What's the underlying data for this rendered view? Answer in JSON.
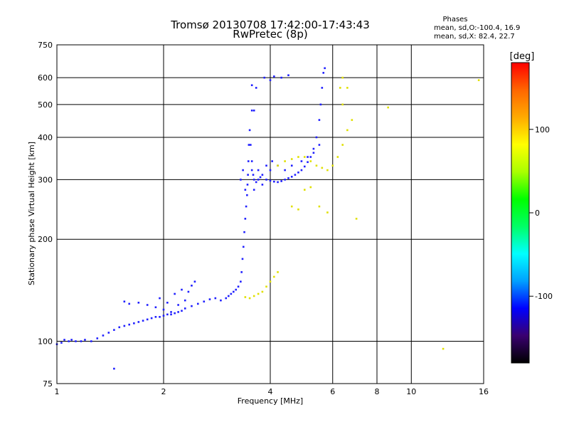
{
  "chart_data": {
    "type": "scatter",
    "title": "Tromsø 20130708 17:42:00-17:43:43",
    "subtitle": "RwPretec (8p)",
    "xlabel": "Frequency [MHz]",
    "ylabel": "Stationary phase Virtual Height [km]",
    "xscale": "log",
    "yscale": "log",
    "xlim": [
      1,
      16
    ],
    "ylim": [
      75,
      750
    ],
    "x_ticks": [
      1,
      2,
      4,
      6,
      8,
      10,
      16
    ],
    "x_tick_labels": [
      "1",
      "2",
      "4",
      "6",
      "8",
      "10",
      "16"
    ],
    "x_grid": [
      2,
      4,
      6,
      8,
      10
    ],
    "y_ticks": [
      75,
      100,
      200,
      300,
      400,
      500,
      600,
      750
    ],
    "y_tick_labels": [
      "75",
      "100",
      "200",
      "300",
      "400",
      "500",
      "600",
      "750"
    ],
    "y_grid": [
      100,
      200,
      300,
      400,
      500,
      600
    ],
    "grid": true,
    "legend": {
      "title": "Phases",
      "lines": [
        "mean, sd,O:-100.4, 16.9",
        "mean, sd,X:  82.4, 22.7"
      ],
      "placement": "top-right"
    },
    "colorbar": {
      "label": "[deg]",
      "range": [
        -180,
        180
      ],
      "ticks": [
        100,
        0,
        -100
      ],
      "tick_labels": [
        "100",
        "0",
        "-100"
      ],
      "colors": [
        "#000000",
        "#3a0070",
        "#0000ff",
        "#00a0ff",
        "#00ffff",
        "#00ff66",
        "#00ff00",
        "#aaff00",
        "#ffff00",
        "#ffaa00",
        "#ff6600",
        "#ff0000"
      ]
    },
    "series": [
      {
        "mode": "O",
        "color": "#2020ff",
        "points": [
          [
            1.0,
            98
          ],
          [
            1.03,
            99
          ],
          [
            1.05,
            101
          ],
          [
            1.08,
            100
          ],
          [
            1.1,
            101
          ],
          [
            1.13,
            100
          ],
          [
            1.17,
            100
          ],
          [
            1.2,
            101
          ],
          [
            1.25,
            100
          ],
          [
            1.3,
            102
          ],
          [
            1.35,
            104
          ],
          [
            1.4,
            106
          ],
          [
            1.45,
            108
          ],
          [
            1.5,
            110
          ],
          [
            1.55,
            111
          ],
          [
            1.6,
            112
          ],
          [
            1.65,
            113
          ],
          [
            1.7,
            114
          ],
          [
            1.75,
            115
          ],
          [
            1.8,
            116
          ],
          [
            1.85,
            117
          ],
          [
            1.9,
            118
          ],
          [
            1.95,
            118
          ],
          [
            2.0,
            119
          ],
          [
            2.05,
            120
          ],
          [
            2.1,
            120
          ],
          [
            2.15,
            121
          ],
          [
            2.2,
            122
          ],
          [
            2.25,
            123
          ],
          [
            2.3,
            125
          ],
          [
            2.4,
            127
          ],
          [
            2.5,
            129
          ],
          [
            2.6,
            131
          ],
          [
            2.7,
            133
          ],
          [
            2.8,
            134
          ],
          [
            2.9,
            132
          ],
          [
            3.0,
            134
          ],
          [
            3.05,
            136
          ],
          [
            3.1,
            138
          ],
          [
            3.15,
            140
          ],
          [
            3.2,
            142
          ],
          [
            3.25,
            145
          ],
          [
            3.3,
            150
          ],
          [
            3.32,
            160
          ],
          [
            3.34,
            175
          ],
          [
            3.36,
            190
          ],
          [
            3.38,
            210
          ],
          [
            3.4,
            230
          ],
          [
            3.42,
            250
          ],
          [
            3.44,
            270
          ],
          [
            3.45,
            290
          ],
          [
            3.46,
            310
          ],
          [
            3.47,
            340
          ],
          [
            3.48,
            380
          ],
          [
            3.5,
            420
          ],
          [
            3.52,
            380
          ],
          [
            3.55,
            340
          ],
          [
            3.58,
            310
          ],
          [
            3.6,
            300
          ],
          [
            3.65,
            295
          ],
          [
            3.7,
            300
          ],
          [
            3.75,
            305
          ],
          [
            3.8,
            310
          ],
          [
            3.9,
            300
          ],
          [
            4.0,
            298
          ],
          [
            4.1,
            296
          ],
          [
            4.2,
            295
          ],
          [
            4.3,
            297
          ],
          [
            4.4,
            300
          ],
          [
            4.5,
            303
          ],
          [
            4.6,
            306
          ],
          [
            4.7,
            310
          ],
          [
            4.8,
            315
          ],
          [
            4.9,
            320
          ],
          [
            5.0,
            328
          ],
          [
            5.1,
            338
          ],
          [
            5.2,
            350
          ],
          [
            5.3,
            370
          ],
          [
            5.4,
            400
          ],
          [
            5.5,
            450
          ],
          [
            5.55,
            500
          ],
          [
            5.6,
            560
          ],
          [
            5.65,
            620
          ],
          [
            5.7,
            640
          ],
          [
            1.55,
            131
          ],
          [
            1.6,
            129
          ],
          [
            1.7,
            130
          ],
          [
            1.8,
            128
          ],
          [
            1.9,
            126
          ],
          [
            2.0,
            124
          ],
          [
            2.1,
            122
          ],
          [
            2.2,
            128
          ],
          [
            2.3,
            132
          ],
          [
            2.35,
            140
          ],
          [
            2.4,
            146
          ],
          [
            2.45,
            150
          ],
          [
            2.25,
            142
          ],
          [
            2.15,
            138
          ],
          [
            2.05,
            130
          ],
          [
            1.95,
            134
          ],
          [
            3.3,
            300
          ],
          [
            3.35,
            320
          ],
          [
            3.4,
            280
          ],
          [
            3.55,
            320
          ],
          [
            3.6,
            280
          ],
          [
            3.7,
            320
          ],
          [
            3.8,
            290
          ],
          [
            3.9,
            330
          ],
          [
            4.0,
            320
          ],
          [
            4.05,
            340
          ],
          [
            4.2,
            330
          ],
          [
            4.4,
            320
          ],
          [
            4.6,
            330
          ],
          [
            4.9,
            340
          ],
          [
            5.1,
            350
          ],
          [
            5.3,
            360
          ],
          [
            5.5,
            380
          ],
          [
            3.85,
            600
          ],
          [
            4.0,
            590
          ],
          [
            4.1,
            605
          ],
          [
            4.3,
            600
          ],
          [
            4.5,
            610
          ],
          [
            3.55,
            570
          ],
          [
            3.65,
            560
          ],
          [
            1.45,
            83
          ],
          [
            3.6,
            480
          ],
          [
            3.55,
            480
          ]
        ]
      },
      {
        "mode": "X",
        "color": "#e0e000",
        "points": [
          [
            3.4,
            135
          ],
          [
            3.5,
            134
          ],
          [
            3.6,
            136
          ],
          [
            3.7,
            138
          ],
          [
            3.8,
            140
          ],
          [
            3.9,
            145
          ],
          [
            4.0,
            150
          ],
          [
            4.1,
            155
          ],
          [
            4.2,
            160
          ],
          [
            4.2,
            330
          ],
          [
            4.4,
            340
          ],
          [
            4.6,
            345
          ],
          [
            4.8,
            350
          ],
          [
            5.0,
            350
          ],
          [
            5.2,
            340
          ],
          [
            5.4,
            330
          ],
          [
            5.6,
            325
          ],
          [
            5.8,
            320
          ],
          [
            6.0,
            330
          ],
          [
            6.2,
            350
          ],
          [
            6.4,
            380
          ],
          [
            6.6,
            420
          ],
          [
            6.8,
            450
          ],
          [
            6.4,
            500
          ],
          [
            6.3,
            560
          ],
          [
            6.4,
            600
          ],
          [
            6.6,
            560
          ],
          [
            4.6,
            250
          ],
          [
            4.8,
            245
          ],
          [
            5.0,
            280
          ],
          [
            5.2,
            285
          ],
          [
            5.5,
            250
          ],
          [
            5.8,
            240
          ],
          [
            7.0,
            230
          ],
          [
            8.6,
            490
          ],
          [
            12.3,
            95
          ],
          [
            15.5,
            590
          ]
        ]
      }
    ]
  }
}
